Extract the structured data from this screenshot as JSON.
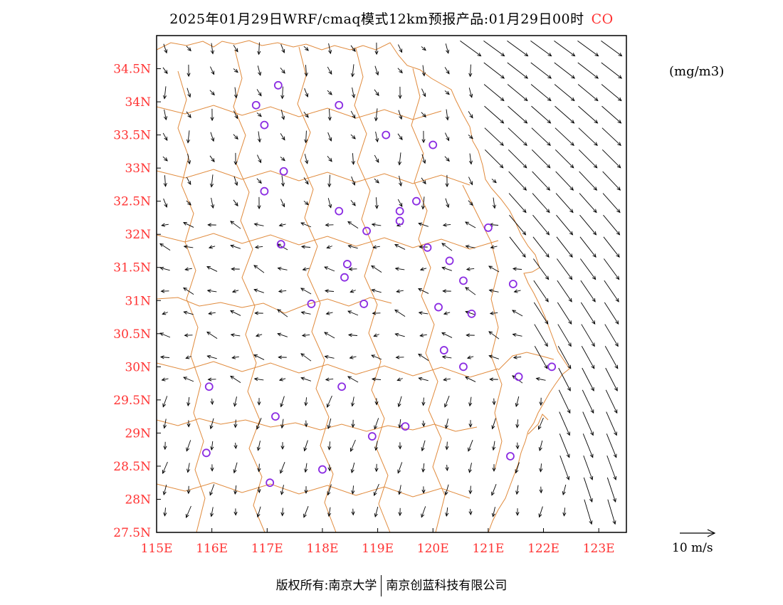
{
  "title": {
    "main": "2025年01月29日WRF/cmaq模式12km预报产品:01月29日00时",
    "species": "CO"
  },
  "unit": "(mg/m3)",
  "wind_reference": {
    "label": "10 m/s",
    "speed_ms": 10
  },
  "footer": {
    "left": "版权所有:南京大学",
    "right": "南京创蓝科技有限公司"
  },
  "colors": {
    "coastline": "#e08a3c",
    "axis_labels": "#ff3333",
    "station_marker": "#8a2be2",
    "arrow": "#000000"
  },
  "map": {
    "lon_range": [
      115,
      123.5
    ],
    "lat_range": [
      27.5,
      35
    ],
    "x_ticks": [
      "115E",
      "116E",
      "117E",
      "118E",
      "119E",
      "120E",
      "121E",
      "122E",
      "123E"
    ],
    "y_ticks": [
      "27.5N",
      "28N",
      "28.5N",
      "29N",
      "29.5N",
      "30N",
      "30.5N",
      "31N",
      "31.5N",
      "32N",
      "32.5N",
      "33N",
      "33.5N",
      "34N",
      "34.5N"
    ],
    "stations": [
      [
        117.2,
        34.25
      ],
      [
        116.8,
        33.95
      ],
      [
        116.95,
        33.65
      ],
      [
        118.3,
        33.95
      ],
      [
        119.15,
        33.5
      ],
      [
        120.0,
        33.35
      ],
      [
        117.3,
        32.95
      ],
      [
        116.95,
        32.65
      ],
      [
        119.4,
        32.35
      ],
      [
        119.7,
        32.5
      ],
      [
        119.4,
        32.2
      ],
      [
        118.3,
        32.35
      ],
      [
        118.8,
        32.05
      ],
      [
        121.0,
        32.1
      ],
      [
        117.25,
        31.85
      ],
      [
        119.9,
        31.8
      ],
      [
        120.3,
        31.6
      ],
      [
        118.45,
        31.55
      ],
      [
        118.4,
        31.35
      ],
      [
        120.55,
        31.3
      ],
      [
        121.45,
        31.25
      ],
      [
        117.8,
        30.95
      ],
      [
        118.75,
        30.95
      ],
      [
        120.1,
        30.9
      ],
      [
        120.7,
        30.8
      ],
      [
        120.2,
        30.25
      ],
      [
        120.55,
        30.0
      ],
      [
        121.55,
        29.85
      ],
      [
        122.15,
        30.0
      ],
      [
        115.95,
        29.7
      ],
      [
        118.35,
        29.7
      ],
      [
        117.15,
        29.25
      ],
      [
        119.5,
        29.1
      ],
      [
        118.9,
        28.95
      ],
      [
        115.9,
        28.7
      ],
      [
        121.4,
        28.65
      ],
      [
        118.0,
        28.45
      ],
      [
        117.05,
        28.25
      ]
    ]
  }
}
